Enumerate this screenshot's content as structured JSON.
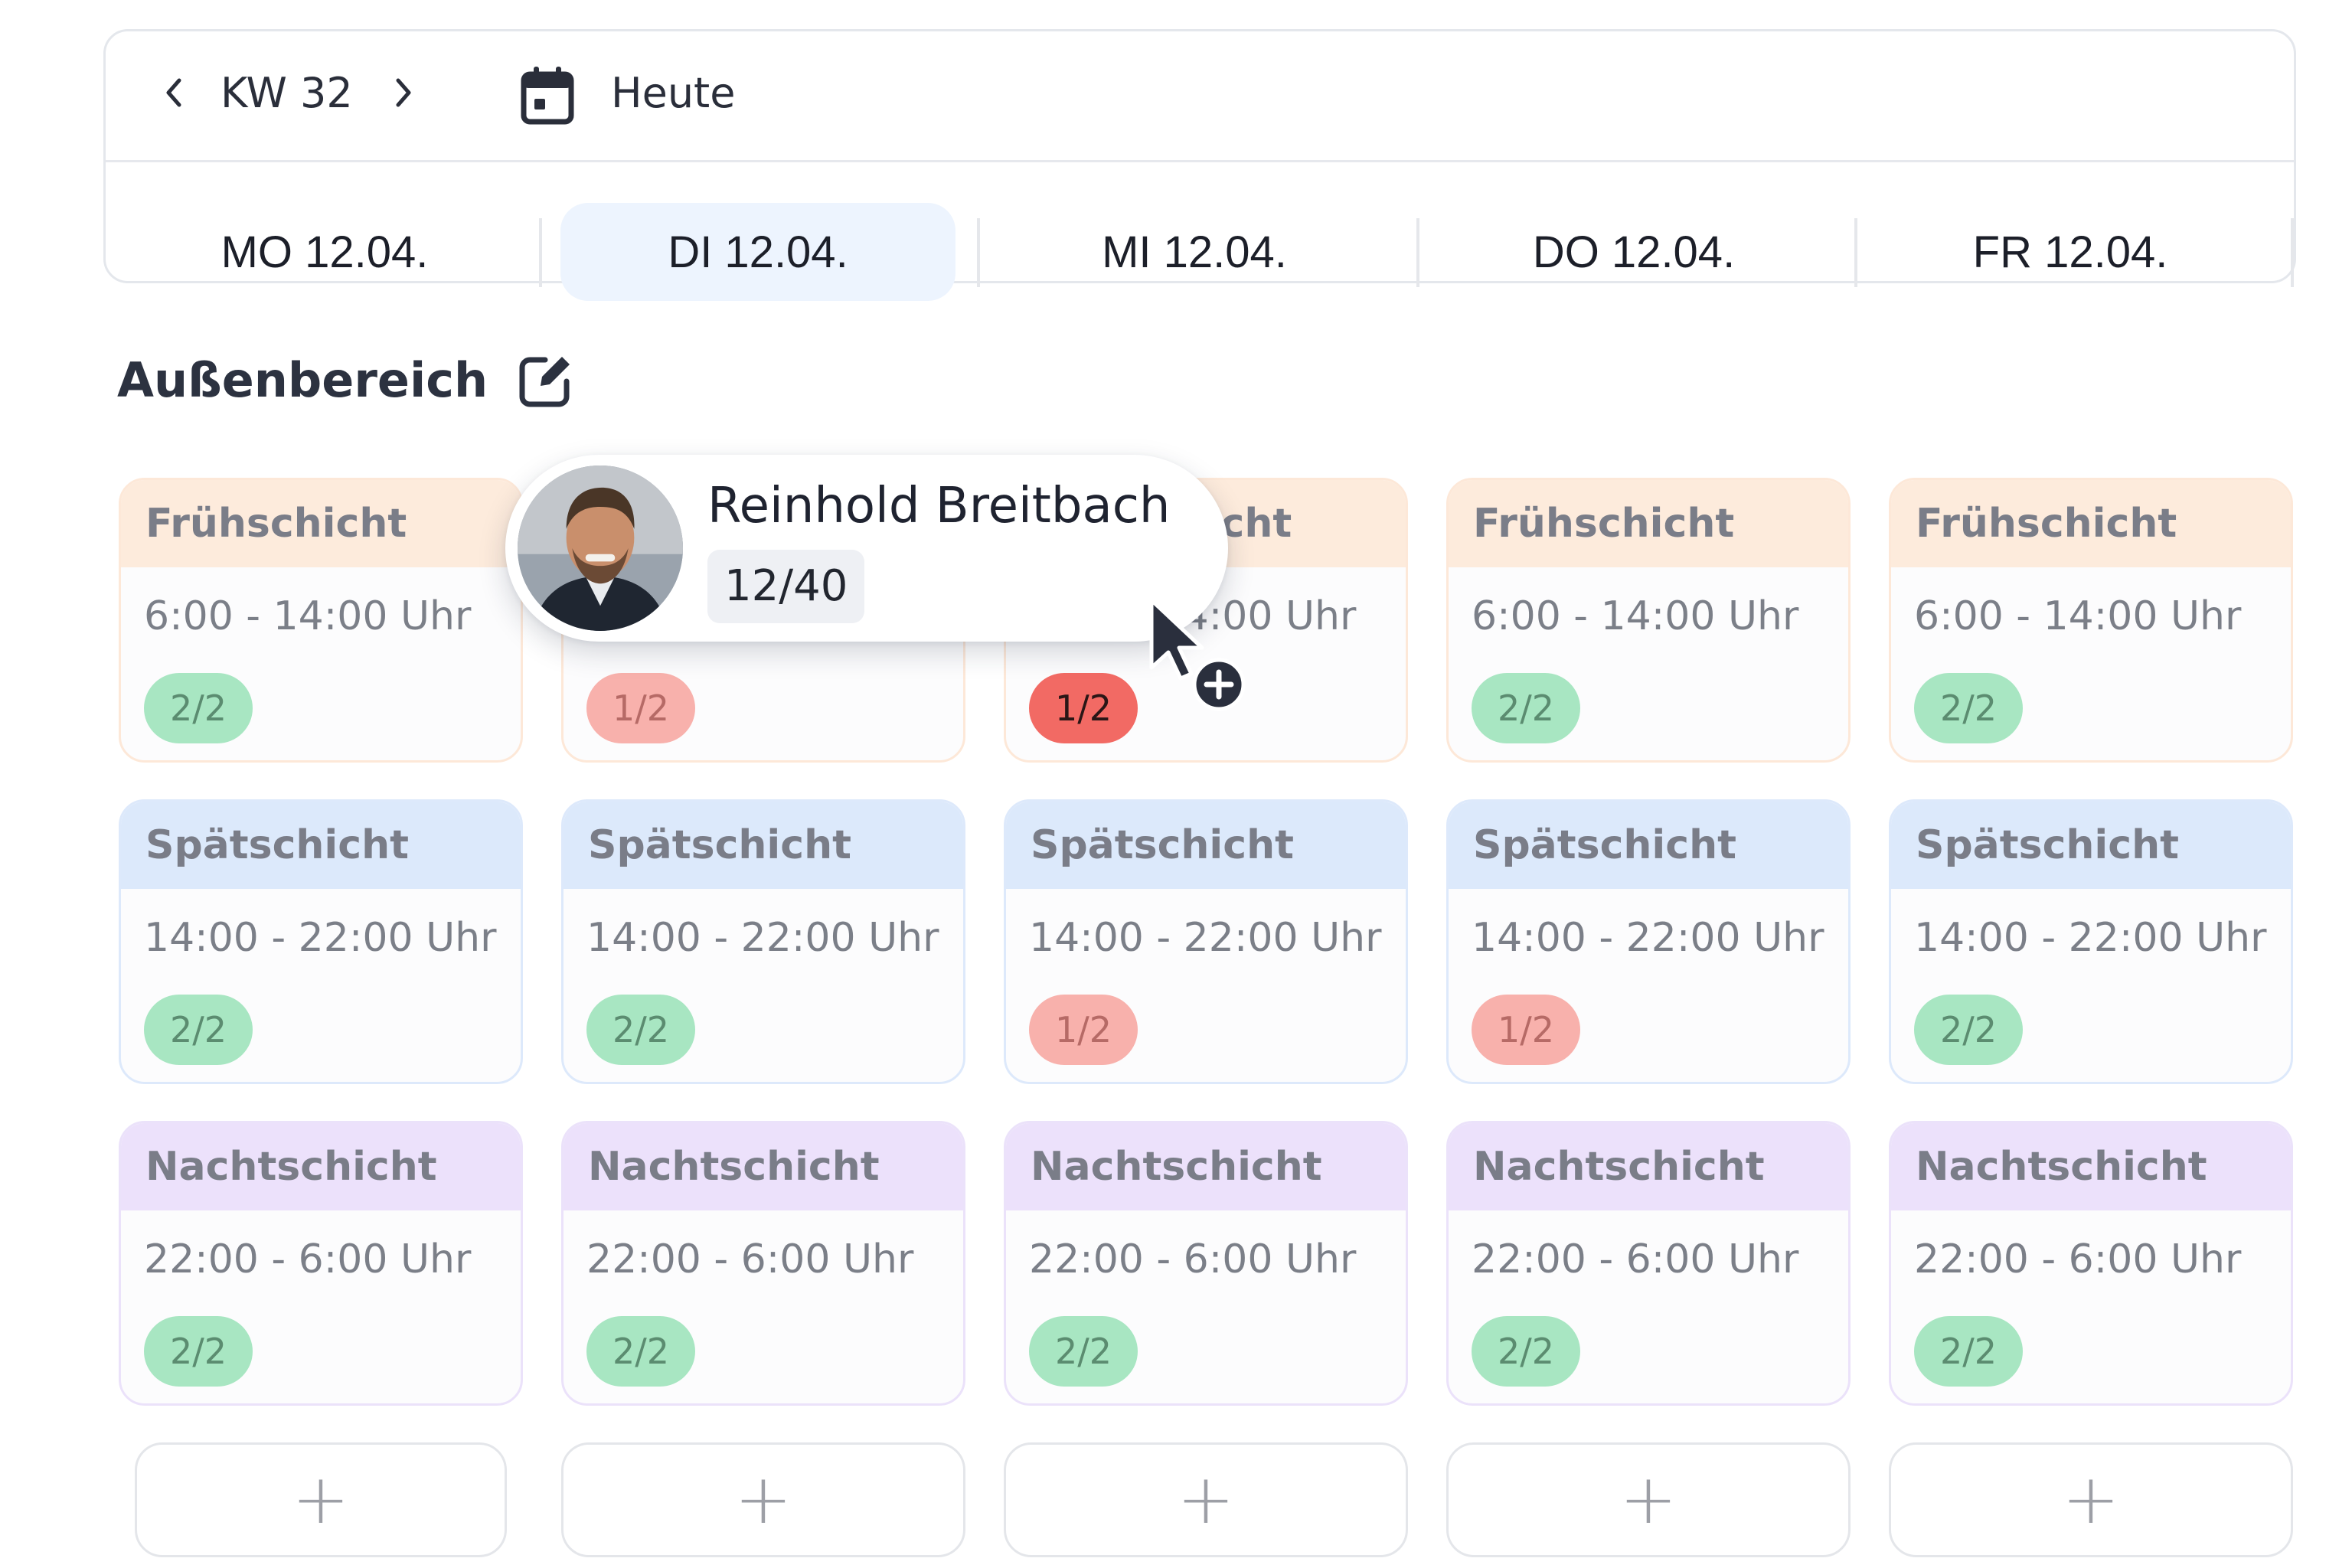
{
  "header": {
    "week_label": "KW 32",
    "today_label": "Heute",
    "days": [
      {
        "label": "MO 12.04.",
        "active": false
      },
      {
        "label": "DI 12.04.",
        "active": true
      },
      {
        "label": "MI 12.04.",
        "active": false
      },
      {
        "label": "DO 12.04.",
        "active": false
      },
      {
        "label": "FR 12.04.",
        "active": false
      }
    ]
  },
  "section": {
    "title": "Außenbereich"
  },
  "shift_types": {
    "early": {
      "name": "Frühschicht",
      "time": "6:00 - 14:00 Uhr"
    },
    "late": {
      "name": "Spätschicht",
      "time": "14:00 - 22:00 Uhr"
    },
    "night": {
      "name": "Nachtschicht",
      "time": "22:00 - 6:00 Uhr"
    }
  },
  "grid": [
    [
      "2/2",
      "2/2",
      "2/2"
    ],
    [
      "1/2",
      "2/2",
      "2/2"
    ],
    [
      "1/2",
      "1/2",
      "2/2"
    ],
    [
      "2/2",
      "1/2",
      "2/2"
    ],
    [
      "2/2",
      "2/2",
      "2/2"
    ]
  ],
  "badge_status": [
    [
      "ok",
      "ok",
      "ok"
    ],
    [
      "warn",
      "ok",
      "ok"
    ],
    [
      "alert",
      "warn",
      "ok"
    ],
    [
      "ok",
      "warn",
      "ok"
    ],
    [
      "ok",
      "ok",
      "ok"
    ]
  ],
  "add_label": "+",
  "drag_employee": {
    "name": "Reinhold Breitbach",
    "hours": "12/40"
  },
  "colors": {
    "early_header": "#fdebdc",
    "late_header": "#dce9fb",
    "night_header": "#ece1fb",
    "badge_ok": "#a8e6c2",
    "badge_warn": "#f8b1ac",
    "badge_alert": "#f26a64",
    "active_day": "#edf4fe"
  },
  "icons": [
    "chevron-left-icon",
    "chevron-right-icon",
    "calendar-icon",
    "edit-icon",
    "plus-icon",
    "cursor-icon"
  ]
}
